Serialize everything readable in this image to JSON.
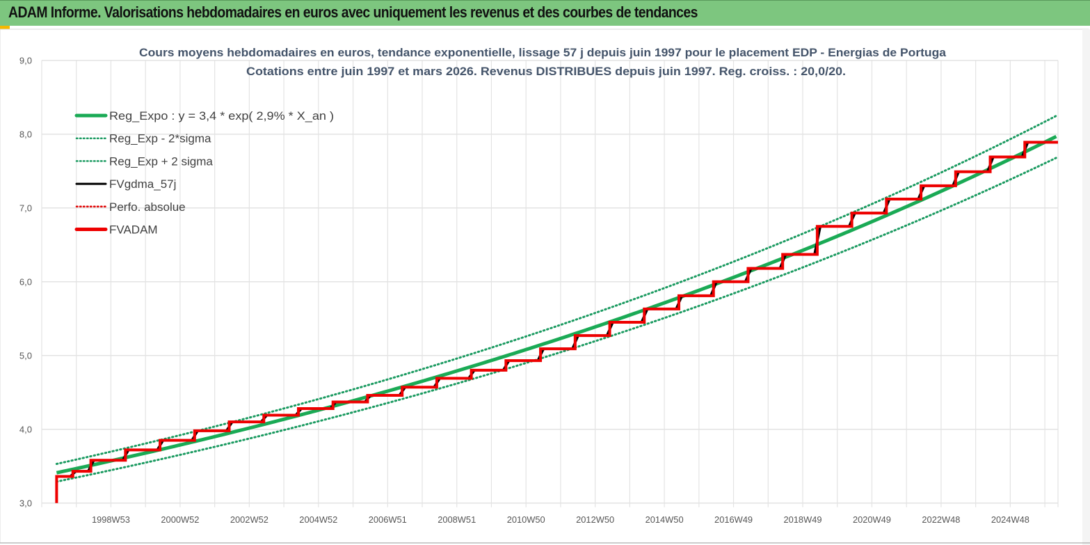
{
  "header": {
    "title": "ADAM Informe. Valorisations hebdomadaires en euros avec uniquement les revenus et des courbes de tendances"
  },
  "colors": {
    "header_bg": "#7dc67f",
    "trend": "#1aaa55",
    "bands": "#1a9a60",
    "smoothed": "#000000",
    "perfo": "#e00000",
    "fvadam": "#ee0000",
    "title_text": "#44546a"
  },
  "chart_data": {
    "type": "line",
    "title": "Cours moyens hebdomadaires en euros, tendance exponentielle, lissage 57 j depuis juin 1997 pour le placement EDP - Energias de Portuga",
    "subtitle": "Cotations entre juin 1997 et mars 2026. Revenus DISTRIBUES depuis juin 1997. Reg. croiss. : 20,0/20.",
    "ylim": [
      3.0,
      9.0
    ],
    "yticks": [
      "3,0",
      "4,0",
      "5,0",
      "6,0",
      "7,0",
      "8,0",
      "9,0"
    ],
    "xlim": [
      1997.0,
      2026.38
    ],
    "xtick_labels": [
      "1998W53",
      "2000W52",
      "2002W52",
      "2004W52",
      "2006W51",
      "2008W51",
      "2010W50",
      "2012W50",
      "2014W50",
      "2016W49",
      "2018W49",
      "2020W49",
      "2022W48",
      "2024W48"
    ],
    "grid": true,
    "legend_position": "top-left",
    "legend": [
      {
        "name": "Reg_Expo : y = 3,4 * exp( 2,9% *  X_an )",
        "style": "solid-thick",
        "color": "#1aaa55"
      },
      {
        "name": "Reg_Exp - 2*sigma",
        "style": "dotted",
        "color": "#1a9a60"
      },
      {
        "name": "Reg_Exp + 2 sigma",
        "style": "dotted",
        "color": "#1a9a60"
      },
      {
        "name": "FVgdma_57j",
        "style": "solid",
        "color": "#000000"
      },
      {
        "name": "Perfo. absolue",
        "style": "dotted",
        "color": "#e00000"
      },
      {
        "name": "FVADAM",
        "style": "solid-thick",
        "color": "#ee0000"
      }
    ],
    "trend": {
      "start_year": 1997.43,
      "end_year": 2026.38,
      "start_value": 3.41,
      "end_value": 7.98,
      "upper_start": 3.53,
      "upper_end": 8.26,
      "lower_start": 3.29,
      "lower_end": 7.69
    },
    "fvadam_steps": [
      [
        1997.43,
        3.36
      ],
      [
        1997.9,
        3.43
      ],
      [
        1998.42,
        3.58
      ],
      [
        1999.42,
        3.72
      ],
      [
        2000.42,
        3.85
      ],
      [
        2001.42,
        3.98
      ],
      [
        2002.42,
        4.1
      ],
      [
        2003.42,
        4.19
      ],
      [
        2004.42,
        4.28
      ],
      [
        2005.42,
        4.37
      ],
      [
        2006.42,
        4.46
      ],
      [
        2007.42,
        4.57
      ],
      [
        2008.42,
        4.69
      ],
      [
        2009.42,
        4.8
      ],
      [
        2010.42,
        4.93
      ],
      [
        2011.42,
        5.09
      ],
      [
        2012.42,
        5.27
      ],
      [
        2013.42,
        5.45
      ],
      [
        2014.42,
        5.63
      ],
      [
        2015.42,
        5.81
      ],
      [
        2016.42,
        6.0
      ],
      [
        2017.42,
        6.18
      ],
      [
        2018.42,
        6.37
      ],
      [
        2019.42,
        6.75
      ],
      [
        2020.42,
        6.93
      ],
      [
        2021.42,
        7.12
      ],
      [
        2022.42,
        7.3
      ],
      [
        2023.42,
        7.49
      ],
      [
        2024.42,
        7.69
      ],
      [
        2025.42,
        7.89
      ]
    ],
    "fvadam_start_value": 3.0,
    "end_year": 2026.38
  }
}
